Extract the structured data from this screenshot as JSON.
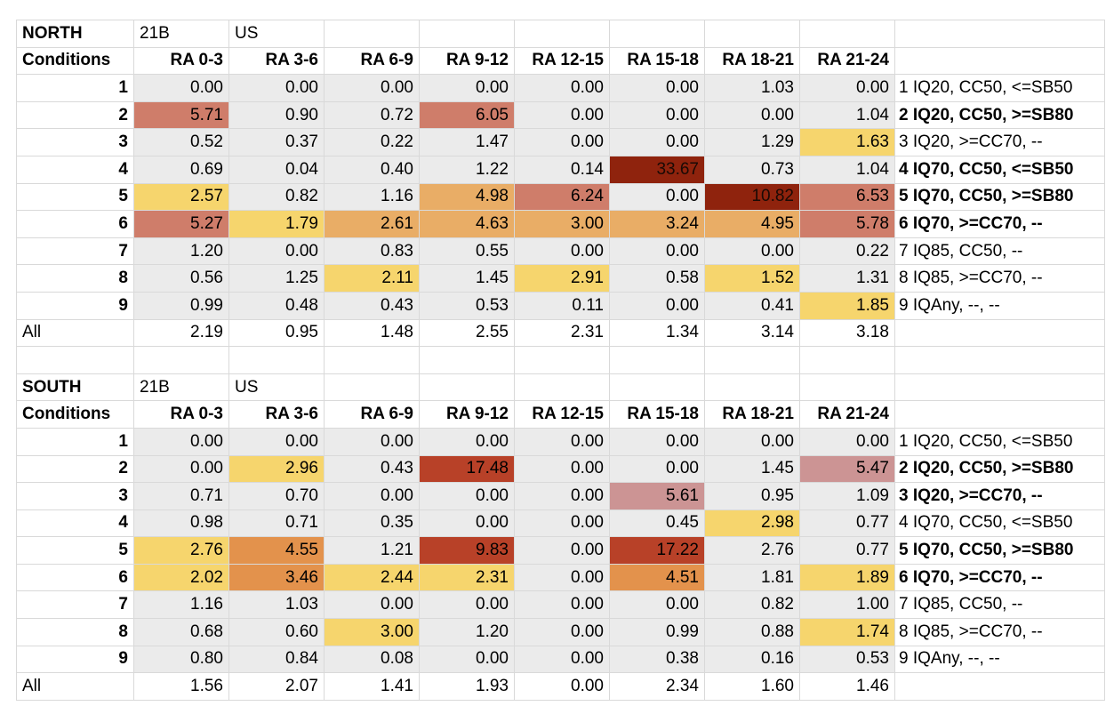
{
  "colors": {
    "neutral": "#ebebeb",
    "yellow": "#f6d56d",
    "orange": "#e9ad66",
    "orange_strong": "#e3924c",
    "rose": "#cf7d6a",
    "rose_light": "#cc9494",
    "red": "#b84128",
    "red_dark": "#8f230d"
  },
  "sections": [
    {
      "region": "NORTH",
      "code": "21B",
      "country": "US",
      "row_header": "Conditions",
      "columns": [
        "RA 0-3",
        "RA 3-6",
        "RA 6-9",
        "RA 9-12",
        "RA 12-15",
        "RA 15-18",
        "RA 18-21",
        "RA 21-24"
      ],
      "rows": [
        {
          "cond": "1",
          "values": [
            "0.00",
            "0.00",
            "0.00",
            "0.00",
            "0.00",
            "0.00",
            "1.03",
            "0.00"
          ],
          "fills": [
            "neutral",
            "neutral",
            "neutral",
            "neutral",
            "neutral",
            "neutral",
            "neutral",
            "neutral"
          ],
          "note": "1  IQ20, CC50, <=SB50",
          "note_bold": false
        },
        {
          "cond": "2",
          "values": [
            "5.71",
            "0.90",
            "0.72",
            "6.05",
            "0.00",
            "0.00",
            "0.00",
            "1.04"
          ],
          "fills": [
            "rose",
            "neutral",
            "neutral",
            "rose",
            "neutral",
            "neutral",
            "neutral",
            "neutral"
          ],
          "note": "2  IQ20, CC50, >=SB80",
          "note_bold": true
        },
        {
          "cond": "3",
          "values": [
            "0.52",
            "0.37",
            "0.22",
            "1.47",
            "0.00",
            "0.00",
            "1.29",
            "1.63"
          ],
          "fills": [
            "neutral",
            "neutral",
            "neutral",
            "neutral",
            "neutral",
            "neutral",
            "neutral",
            "yellow"
          ],
          "note": "3  IQ20, >=CC70, --",
          "note_bold": false
        },
        {
          "cond": "4",
          "values": [
            "0.69",
            "0.04",
            "0.40",
            "1.22",
            "0.14",
            "33.67",
            "0.73",
            "1.04"
          ],
          "fills": [
            "neutral",
            "neutral",
            "neutral",
            "neutral",
            "neutral",
            "red_dark",
            "neutral",
            "neutral"
          ],
          "note": "4  IQ70, CC50, <=SB50",
          "note_bold": true
        },
        {
          "cond": "5",
          "values": [
            "2.57",
            "0.82",
            "1.16",
            "4.98",
            "6.24",
            "0.00",
            "10.82",
            "6.53"
          ],
          "fills": [
            "yellow",
            "neutral",
            "neutral",
            "orange",
            "rose",
            "neutral",
            "red_dark",
            "rose"
          ],
          "note": "5  IQ70, CC50, >=SB80",
          "note_bold": true
        },
        {
          "cond": "6",
          "values": [
            "5.27",
            "1.79",
            "2.61",
            "4.63",
            "3.00",
            "3.24",
            "4.95",
            "5.78"
          ],
          "fills": [
            "rose",
            "yellow",
            "orange",
            "orange",
            "orange",
            "orange",
            "orange",
            "rose"
          ],
          "note": "6  IQ70, >=CC70, --",
          "note_bold": true
        },
        {
          "cond": "7",
          "values": [
            "1.20",
            "0.00",
            "0.83",
            "0.55",
            "0.00",
            "0.00",
            "0.00",
            "0.22"
          ],
          "fills": [
            "neutral",
            "neutral",
            "neutral",
            "neutral",
            "neutral",
            "neutral",
            "neutral",
            "neutral"
          ],
          "note": "7  IQ85, CC50, --",
          "note_bold": false
        },
        {
          "cond": "8",
          "values": [
            "0.56",
            "1.25",
            "2.11",
            "1.45",
            "2.91",
            "0.58",
            "1.52",
            "1.31"
          ],
          "fills": [
            "neutral",
            "neutral",
            "yellow",
            "neutral",
            "yellow",
            "neutral",
            "yellow",
            "neutral"
          ],
          "note": "8  IQ85, >=CC70, --",
          "note_bold": false
        },
        {
          "cond": "9",
          "values": [
            "0.99",
            "0.48",
            "0.43",
            "0.53",
            "0.11",
            "0.00",
            "0.41",
            "1.85"
          ],
          "fills": [
            "neutral",
            "neutral",
            "neutral",
            "neutral",
            "neutral",
            "neutral",
            "neutral",
            "yellow"
          ],
          "note": "9 IQAny, --, --",
          "note_bold": false
        }
      ],
      "all_label": "All",
      "all_values": [
        "2.19",
        "0.95",
        "1.48",
        "2.55",
        "2.31",
        "1.34",
        "3.14",
        "3.18"
      ]
    },
    {
      "region": "SOUTH",
      "code": "21B",
      "country": "US",
      "row_header": "Conditions",
      "columns": [
        "RA 0-3",
        "RA 3-6",
        "RA 6-9",
        "RA 9-12",
        "RA 12-15",
        "RA 15-18",
        "RA 18-21",
        "RA 21-24"
      ],
      "rows": [
        {
          "cond": "1",
          "values": [
            "0.00",
            "0.00",
            "0.00",
            "0.00",
            "0.00",
            "0.00",
            "0.00",
            "0.00"
          ],
          "fills": [
            "neutral",
            "neutral",
            "neutral",
            "neutral",
            "neutral",
            "neutral",
            "neutral",
            "neutral"
          ],
          "note": "1  IQ20, CC50, <=SB50",
          "note_bold": false
        },
        {
          "cond": "2",
          "values": [
            "0.00",
            "2.96",
            "0.43",
            "17.48",
            "0.00",
            "0.00",
            "1.45",
            "5.47"
          ],
          "fills": [
            "neutral",
            "yellow",
            "neutral",
            "red",
            "neutral",
            "neutral",
            "neutral",
            "rose_light"
          ],
          "note": "2  IQ20, CC50, >=SB80",
          "note_bold": true
        },
        {
          "cond": "3",
          "values": [
            "0.71",
            "0.70",
            "0.00",
            "0.00",
            "0.00",
            "5.61",
            "0.95",
            "1.09"
          ],
          "fills": [
            "neutral",
            "neutral",
            "neutral",
            "neutral",
            "neutral",
            "rose_light",
            "neutral",
            "neutral"
          ],
          "note": "3  IQ20, >=CC70, --",
          "note_bold": true
        },
        {
          "cond": "4",
          "values": [
            "0.98",
            "0.71",
            "0.35",
            "0.00",
            "0.00",
            "0.45",
            "2.98",
            "0.77"
          ],
          "fills": [
            "neutral",
            "neutral",
            "neutral",
            "neutral",
            "neutral",
            "neutral",
            "yellow",
            "neutral"
          ],
          "note": "4  IQ70, CC50, <=SB50",
          "note_bold": false
        },
        {
          "cond": "5",
          "values": [
            "2.76",
            "4.55",
            "1.21",
            "9.83",
            "0.00",
            "17.22",
            "2.76",
            "0.77"
          ],
          "fills": [
            "yellow",
            "orange_strong",
            "neutral",
            "red",
            "neutral",
            "red",
            "neutral",
            "neutral"
          ],
          "note": "5  IQ70, CC50, >=SB80",
          "note_bold": true
        },
        {
          "cond": "6",
          "values": [
            "2.02",
            "3.46",
            "2.44",
            "2.31",
            "0.00",
            "4.51",
            "1.81",
            "1.89"
          ],
          "fills": [
            "yellow",
            "orange_strong",
            "yellow",
            "yellow",
            "neutral",
            "orange_strong",
            "neutral",
            "yellow"
          ],
          "note": "6  IQ70, >=CC70, --",
          "note_bold": true
        },
        {
          "cond": "7",
          "values": [
            "1.16",
            "1.03",
            "0.00",
            "0.00",
            "0.00",
            "0.00",
            "0.82",
            "1.00"
          ],
          "fills": [
            "neutral",
            "neutral",
            "neutral",
            "neutral",
            "neutral",
            "neutral",
            "neutral",
            "neutral"
          ],
          "note": "7  IQ85, CC50, --",
          "note_bold": false
        },
        {
          "cond": "8",
          "values": [
            "0.68",
            "0.60",
            "3.00",
            "1.20",
            "0.00",
            "0.99",
            "0.88",
            "1.74"
          ],
          "fills": [
            "neutral",
            "neutral",
            "yellow",
            "neutral",
            "neutral",
            "neutral",
            "neutral",
            "yellow"
          ],
          "note": "8  IQ85, >=CC70, --",
          "note_bold": false
        },
        {
          "cond": "9",
          "values": [
            "0.80",
            "0.84",
            "0.08",
            "0.00",
            "0.00",
            "0.38",
            "0.16",
            "0.53"
          ],
          "fills": [
            "neutral",
            "neutral",
            "neutral",
            "neutral",
            "neutral",
            "neutral",
            "neutral",
            "neutral"
          ],
          "note": "9 IQAny, --, --",
          "note_bold": false
        }
      ],
      "all_label": "All",
      "all_values": [
        "1.56",
        "2.07",
        "1.41",
        "1.93",
        "0.00",
        "2.34",
        "1.60",
        "1.46"
      ]
    }
  ]
}
